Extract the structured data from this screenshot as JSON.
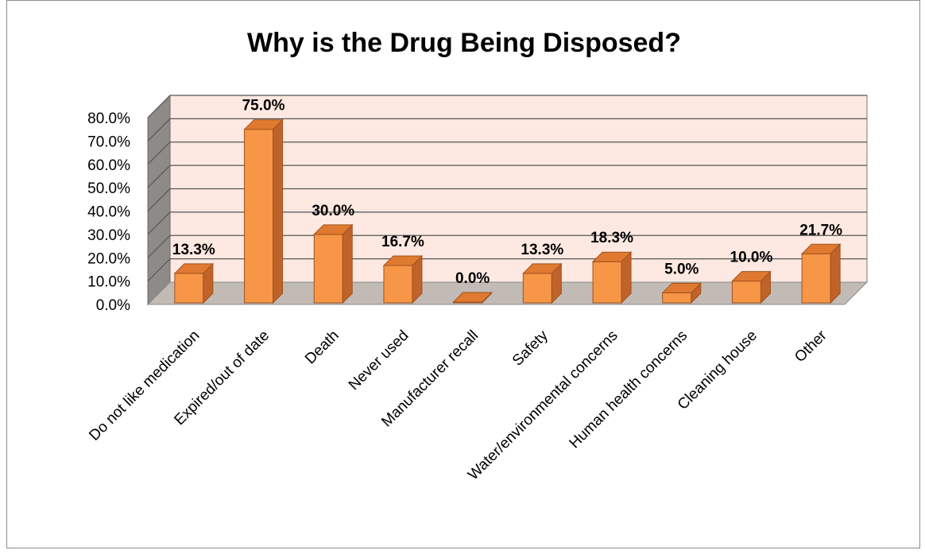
{
  "chart_data": {
    "type": "bar",
    "title": "Why is the Drug Being Disposed?",
    "xlabel": "",
    "ylabel": "",
    "categories": [
      "Do not like medication",
      "Expired/out of date",
      "Death",
      "Never used",
      "Manufacturer recall",
      "Safety",
      "Water/environmental concerns",
      "Human health concerns",
      "Cleaning house",
      "Other"
    ],
    "values": [
      13.3,
      75.0,
      30.0,
      16.7,
      0.0,
      13.3,
      18.3,
      5.0,
      10.0,
      21.7
    ],
    "data_labels": [
      "13.3%",
      "75.0%",
      "30.0%",
      "16.7%",
      "0.0%",
      "13.3%",
      "18.3%",
      "5.0%",
      "10.0%",
      "21.7%"
    ],
    "ylim": [
      0,
      80
    ],
    "yticks": [
      "0.0%",
      "10.0%",
      "20.0%",
      "30.0%",
      "40.0%",
      "50.0%",
      "60.0%",
      "70.0%",
      "80.0%"
    ],
    "grid": true,
    "legend": "none",
    "style": "3d-column",
    "colors": {
      "bar_front": "#f79646",
      "bar_side": "#c0632a",
      "bar_top": "#e07a30",
      "bar_edge": "#a0521e",
      "back_wall": "#fde9e1",
      "side_wall": "#8e8a88",
      "floor": "#c2bab5",
      "gridline": "#555555"
    }
  }
}
